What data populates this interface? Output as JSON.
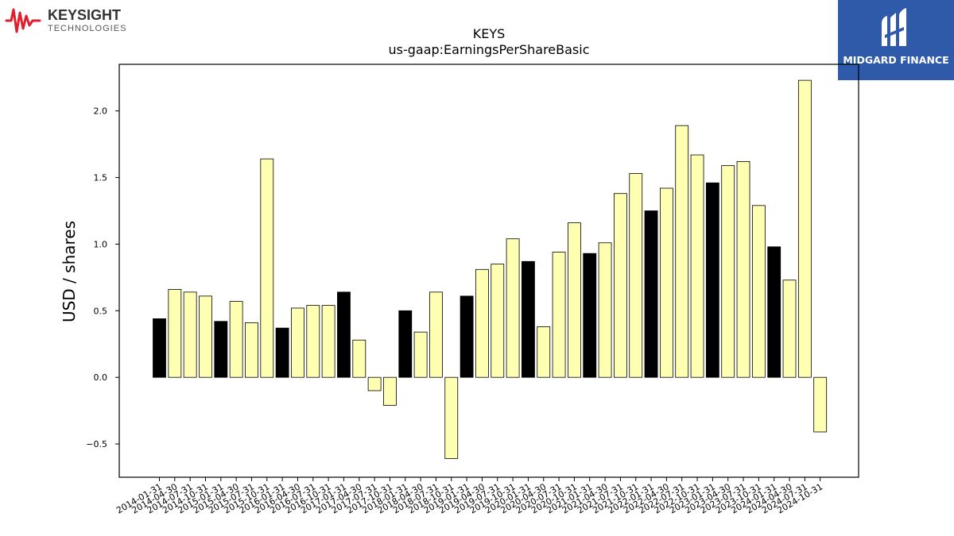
{
  "branding": {
    "left_logo_name": "KEYSIGHT",
    "left_logo_sub": "TECHNOLOGIES",
    "left_logo_color": "#e01e2e",
    "right_logo_text": "MIDGARD FINANCE",
    "right_logo_bg": "#2f5aaa"
  },
  "chart_data": {
    "type": "bar",
    "title": "KEYS",
    "subtitle": "us-gaap:EarningsPerShareBasic",
    "ylabel": "USD / shares",
    "xlabel": "",
    "ylim": [
      -0.75,
      2.35
    ],
    "yticks": [
      "−0.5",
      "0.0",
      "0.5",
      "1.0",
      "1.5",
      "2.0"
    ],
    "grid": false,
    "colors": {
      "quarter": "#ffffb2",
      "annual": "#000000",
      "edge": "#000000"
    },
    "categories": [
      "2014-01-31",
      "2014-04-30",
      "2014-07-31",
      "2014-10-31",
      "2015-01-31",
      "2015-04-30",
      "2015-07-31",
      "2015-10-31",
      "2016-01-31",
      "2016-04-30",
      "2016-07-31",
      "2016-10-31",
      "2017-01-31",
      "2017-04-30",
      "2017-07-31",
      "2017-10-31",
      "2018-01-31",
      "2018-04-30",
      "2018-07-31",
      "2018-10-31",
      "2019-01-31",
      "2019-04-30",
      "2019-07-31",
      "2019-10-31",
      "2020-01-31",
      "2020-04-30",
      "2020-07-31",
      "2020-10-31",
      "2021-01-31",
      "2021-04-30",
      "2021-07-31",
      "2021-10-31",
      "2022-01-31",
      "2022-04-30",
      "2022-07-31",
      "2022-10-31",
      "2023-01-31",
      "2023-04-30",
      "2023-07-31",
      "2023-10-31",
      "2024-01-31",
      "2024-04-30",
      "2024-07-31",
      "2024-10-31"
    ],
    "values": [
      0.44,
      0.66,
      0.64,
      0.61,
      0.42,
      0.57,
      0.41,
      1.64,
      0.37,
      0.52,
      0.54,
      0.54,
      0.64,
      0.28,
      -0.1,
      -0.21,
      0.5,
      0.34,
      0.64,
      -0.61,
      0.61,
      0.81,
      0.85,
      1.04,
      0.87,
      0.38,
      0.94,
      1.16,
      0.93,
      1.01,
      1.38,
      1.53,
      1.25,
      1.42,
      1.89,
      1.67,
      1.46,
      1.59,
      1.62,
      1.29,
      0.98,
      0.73,
      2.23,
      -0.41
    ],
    "annual": [
      true,
      false,
      false,
      false,
      true,
      false,
      false,
      false,
      true,
      false,
      false,
      false,
      true,
      false,
      false,
      false,
      true,
      false,
      false,
      false,
      true,
      false,
      false,
      false,
      true,
      false,
      false,
      false,
      true,
      false,
      false,
      false,
      true,
      false,
      false,
      false,
      true,
      false,
      false,
      false,
      true,
      false,
      false,
      false
    ]
  }
}
